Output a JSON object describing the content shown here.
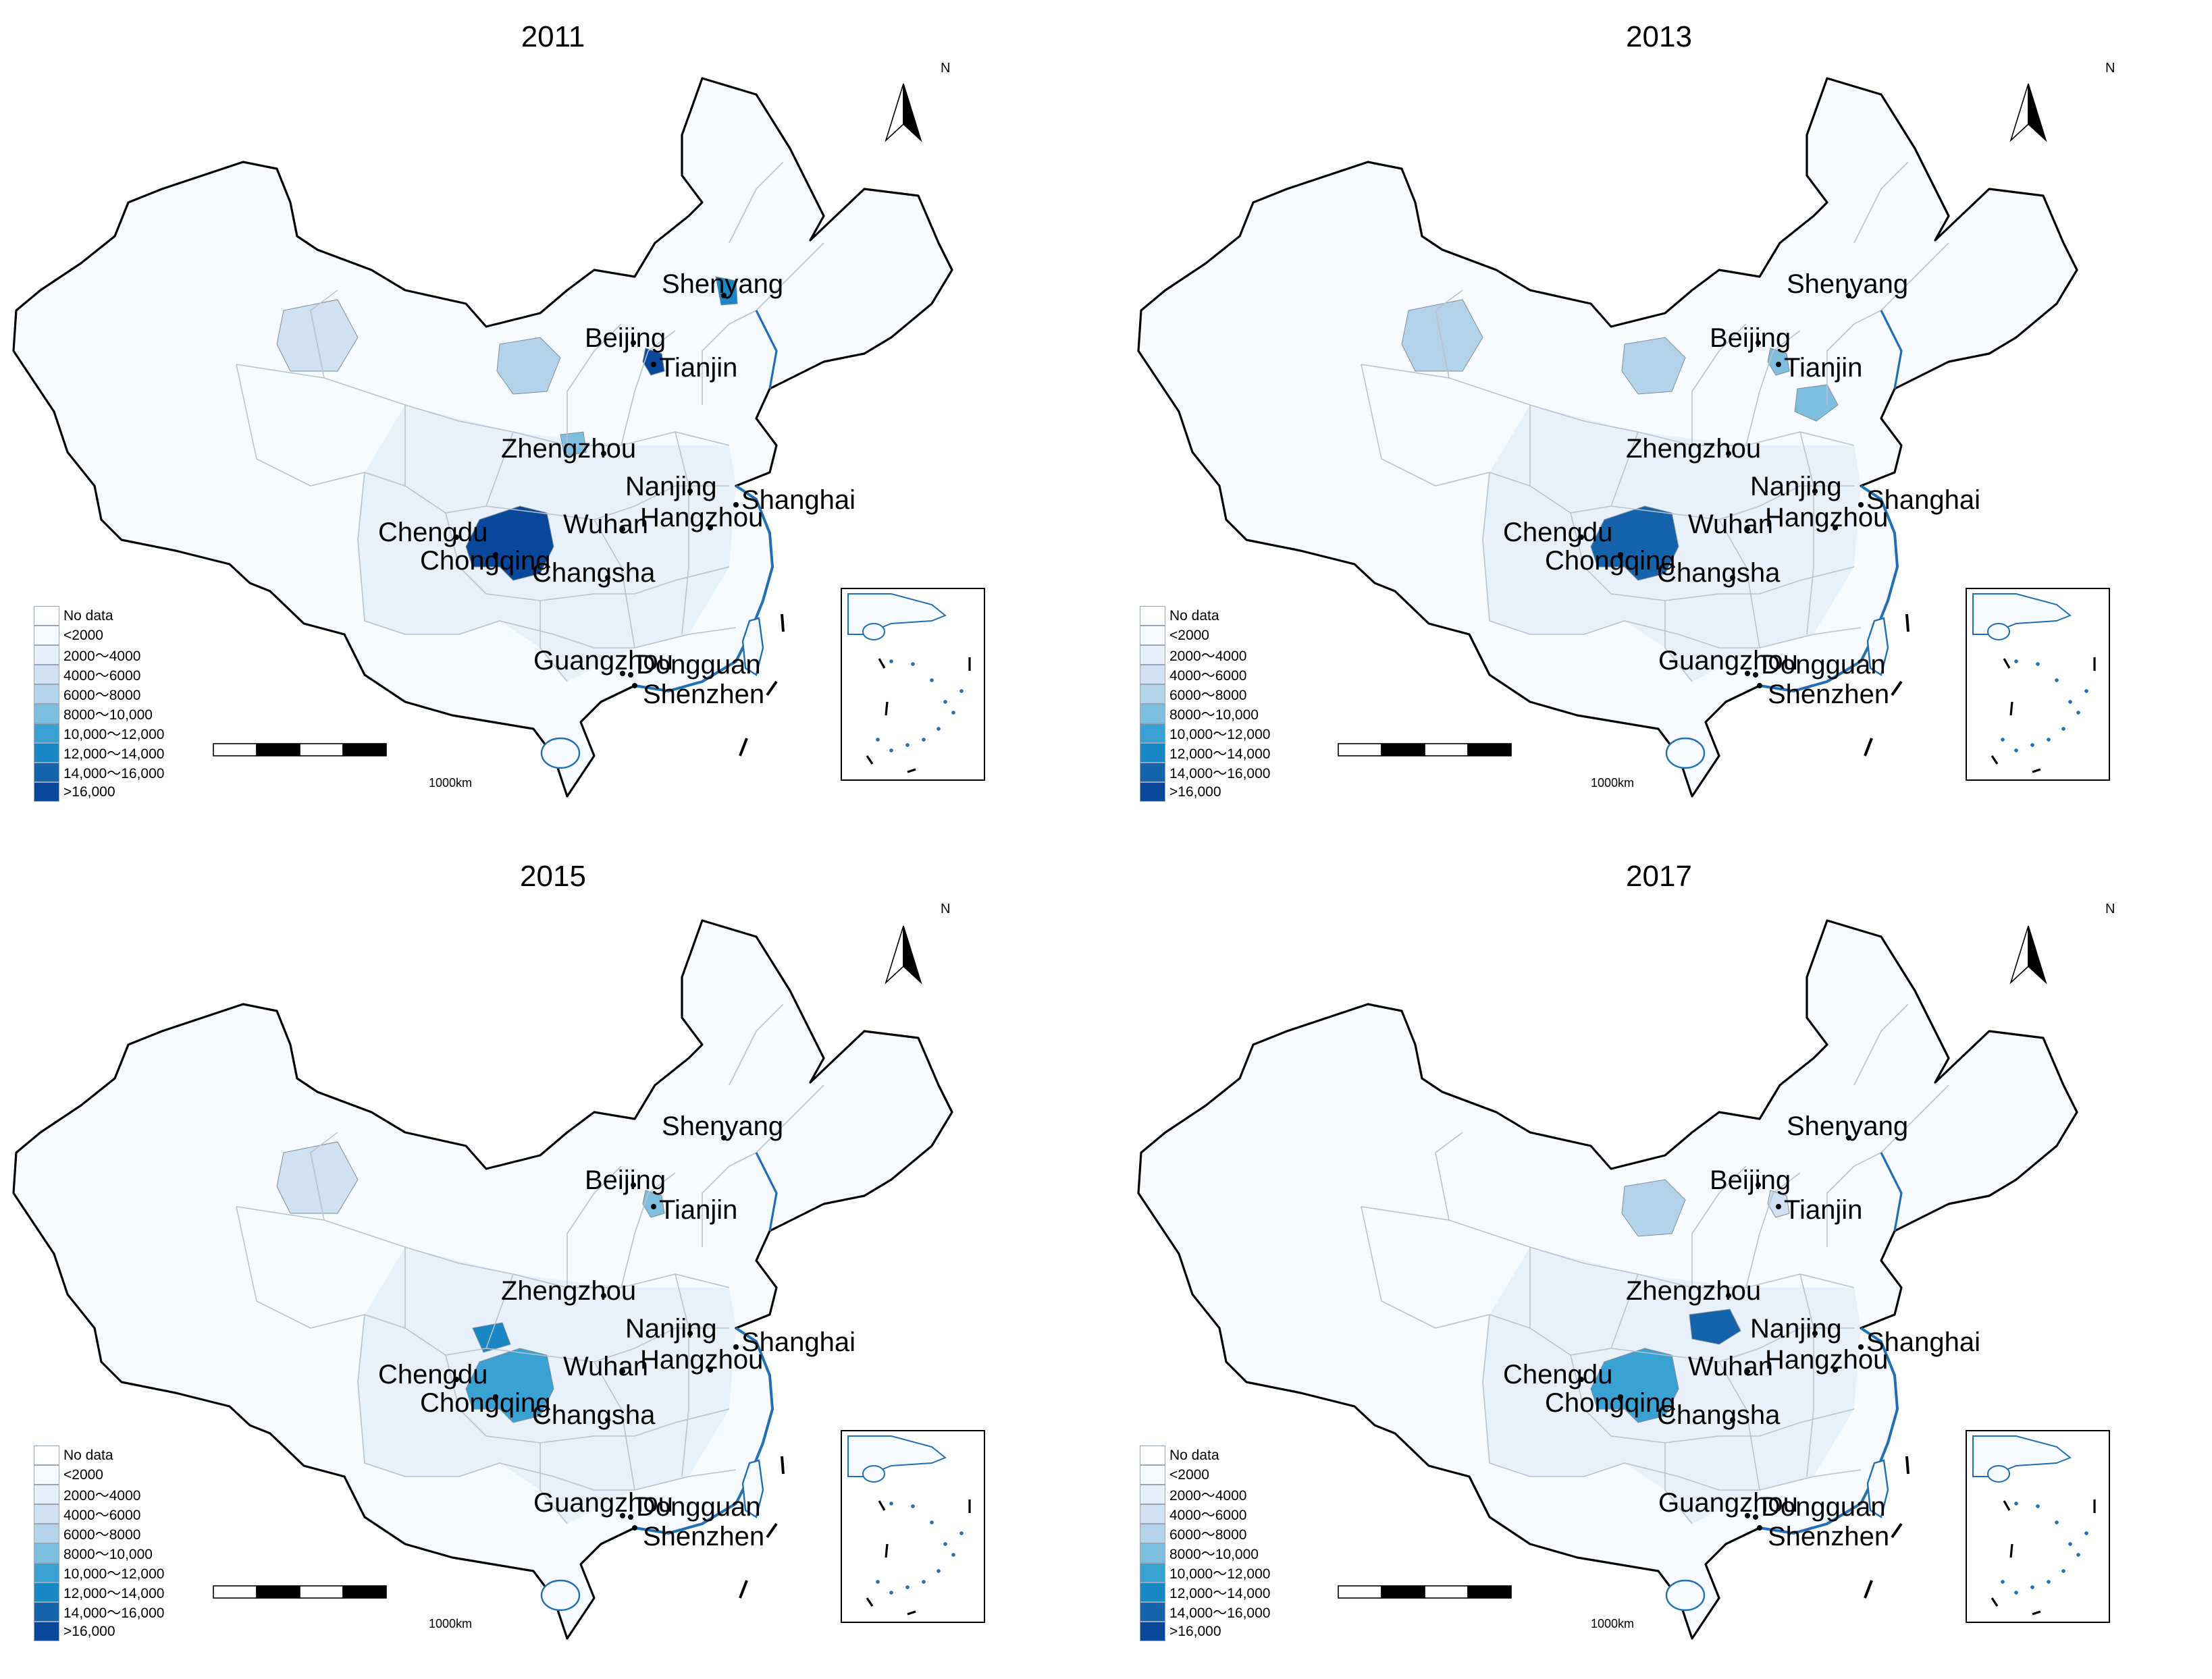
{
  "map": {
    "north_label": "N",
    "scale_label": "1000km",
    "legend": [
      {
        "label": "No data",
        "color": "#ffffff"
      },
      {
        "label": "<2000",
        "color": "#f7fbff"
      },
      {
        "label": "2000～4000",
        "color": "#e4eff9"
      },
      {
        "label": "4000～6000",
        "color": "#cfe1f2"
      },
      {
        "label": "6000～8000",
        "color": "#b3d3ea"
      },
      {
        "label": "8000～10,000",
        "color": "#7ebfe0"
      },
      {
        "label": "10,000～12,000",
        "color": "#3aa1d3"
      },
      {
        "label": "12,000～14,000",
        "color": "#1a86c4"
      },
      {
        "label": "14,000～16,000",
        "color": "#1463ab"
      },
      {
        "label": ">16,000",
        "color": "#08479a"
      }
    ],
    "cities": [
      "Shenyang",
      "Beijing",
      "Tianjin",
      "Zhengzhou",
      "Nanjing",
      "Shanghai",
      "Hangzhou",
      "Wuhan",
      "Chengdu",
      "Chongqing",
      "Changsha",
      "Guangzhou",
      "Dongguan",
      "Shenzhen"
    ],
    "panels": [
      {
        "year": "2011",
        "highlights": {
          "chongqing": ">16,000",
          "tianjin": ">16,000",
          "shenyang": "12,000～14,000",
          "inner_mongolia_west": "6000～8000",
          "xinjiang_north": "4000～6000",
          "zhengzhou": "8000～10,000"
        }
      },
      {
        "year": "2013",
        "highlights": {
          "chongqing": "14,000～16,000",
          "tianjin": "8000～10,000",
          "inner_mongolia_west": "6000～8000",
          "xinjiang_north": "6000～8000",
          "shandong": "8000～10,000"
        }
      },
      {
        "year": "2015",
        "highlights": {
          "chongqing": "10,000～12,000",
          "chengdu_north": "12,000～14,000",
          "tianjin": "8000～10,000",
          "xinjiang_north": "4000～6000"
        }
      },
      {
        "year": "2017",
        "highlights": {
          "chongqing": "10,000～12,000",
          "henan_south": "14,000～16,000",
          "inner_mongolia_west": "6000～8000",
          "tianjin": "4000～6000"
        }
      }
    ]
  }
}
